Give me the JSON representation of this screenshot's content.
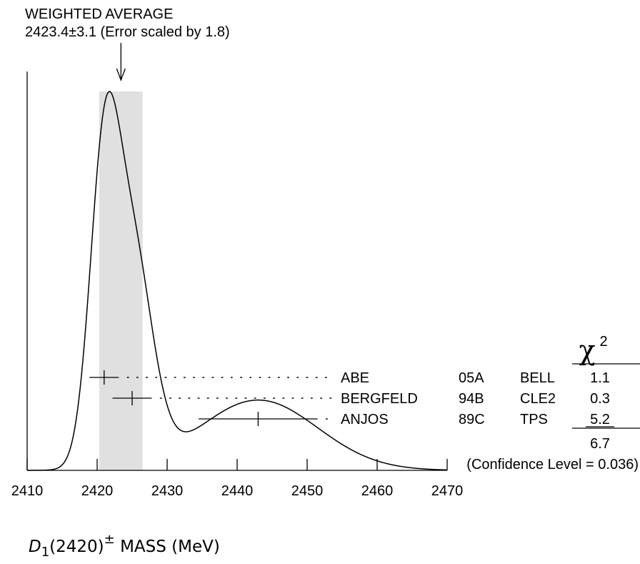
{
  "chart_data": {
    "type": "ideogram",
    "title": "WEIGHTED AVERAGE",
    "subtitle": "2423.4±3.1 (Error scaled by 1.8)",
    "weighted_average": 2423.4,
    "average_error": 3.1,
    "error_scale": 1.8,
    "xlim": [
      2410,
      2470
    ],
    "xticks": [
      2410,
      2420,
      2430,
      2440,
      2450,
      2460,
      2470
    ],
    "xlabel": {
      "symbol": "D",
      "subscript": "1",
      "paren": "(2420)",
      "superscript": "±",
      "text": "MASS (MeV)"
    },
    "chi2_header": "χ",
    "chi2_header_power": "2",
    "measurements": [
      {
        "author": "ABE",
        "year": "05A",
        "experiment": "BELL",
        "value": 2421.0,
        "error": 2.1,
        "chi2": "1.1"
      },
      {
        "author": "BERGFELD",
        "year": "94B",
        "experiment": "CLE2",
        "value": 2425.0,
        "error": 2.8,
        "chi2": "0.3"
      },
      {
        "author": "ANJOS",
        "year": "89C",
        "experiment": "TPS",
        "value": 2443.0,
        "error": 8.5,
        "chi2": "5.2"
      }
    ],
    "chi2_total": "6.7",
    "confidence_level": "(Confidence Level = 0.036)",
    "colors": {
      "band": "#e0e0e0",
      "line": "#000000"
    }
  }
}
